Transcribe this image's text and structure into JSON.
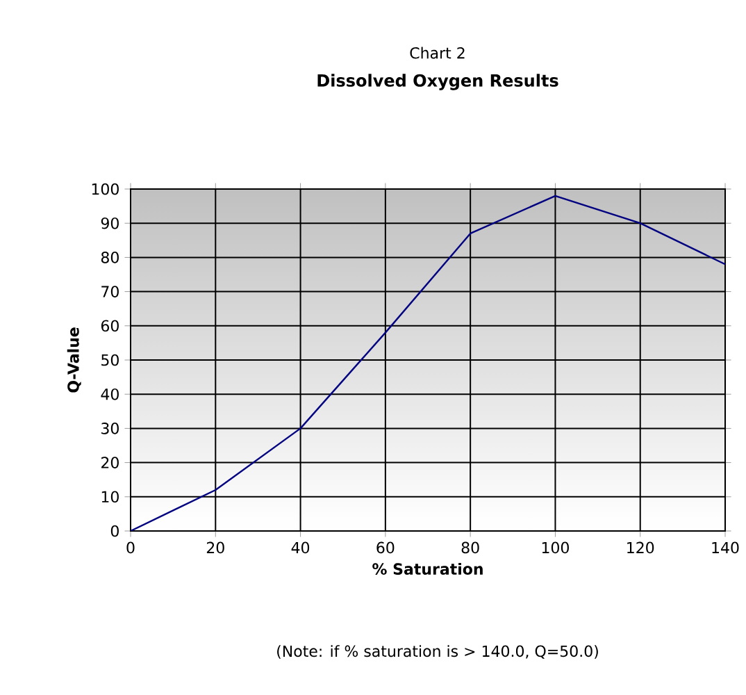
{
  "chart_data": {
    "type": "line",
    "subtitle": "Chart 2",
    "title": "Dissolved Oxygen Results",
    "xlabel": "% Saturation",
    "ylabel": "Q-Value",
    "x": [
      0,
      20,
      40,
      60,
      80,
      100,
      120,
      140
    ],
    "series": [
      {
        "color": "#000080",
        "values": [
          0,
          12,
          30,
          58,
          87,
          98,
          90,
          78
        ]
      }
    ],
    "xlim": [
      0,
      140
    ],
    "xticks": [
      0,
      20,
      40,
      60,
      80,
      100,
      120,
      140
    ],
    "ylim": [
      0,
      100
    ],
    "yticks": [
      0,
      10,
      20,
      30,
      40,
      50,
      60,
      70,
      80,
      90,
      100
    ],
    "grid": true,
    "marker": "none",
    "line_style": "solid",
    "annotations": [
      "(Note: if % saturation is > 140.0, Q=50.0)"
    ]
  }
}
